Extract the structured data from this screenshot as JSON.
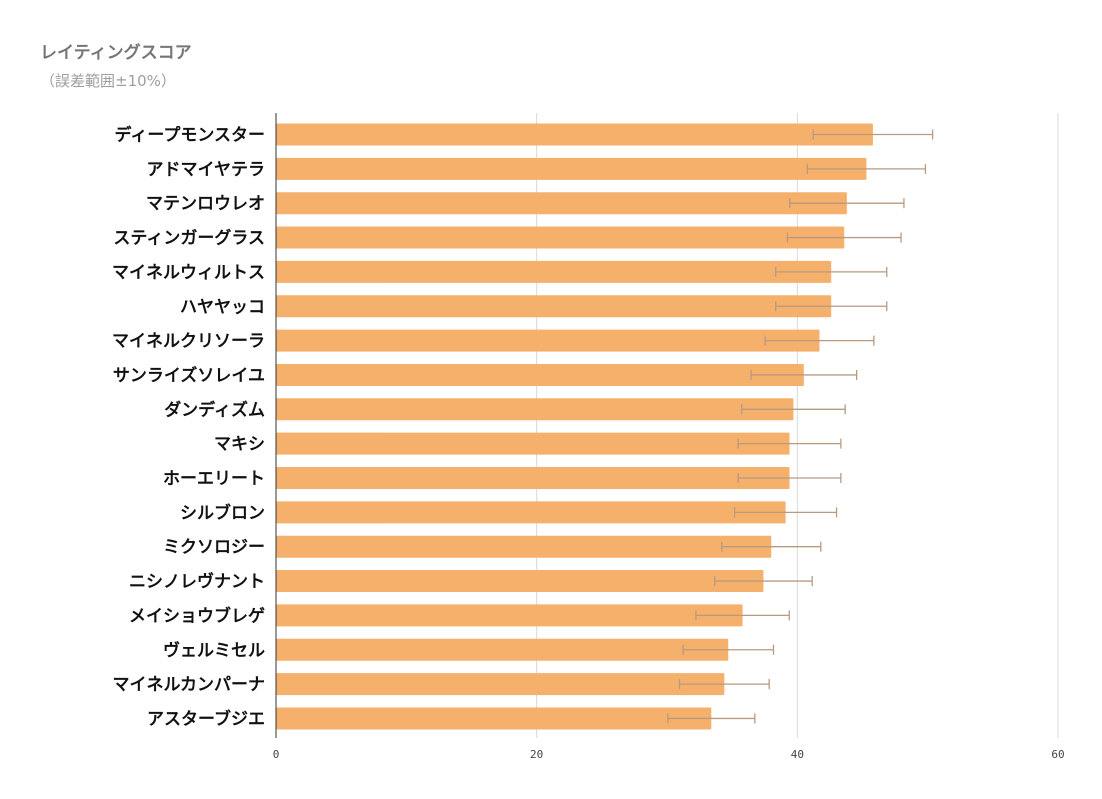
{
  "chart_data": {
    "type": "bar",
    "orientation": "horizontal",
    "title": "レイティングスコア",
    "subtitle": "（誤差範囲±10%）",
    "xlabel": "",
    "ylabel": "",
    "xlim": [
      0,
      60
    ],
    "x_ticks": [
      "0",
      "20",
      "40",
      "60"
    ],
    "grid": true,
    "error_bars": "±10%",
    "bar_color": "#f5b06b",
    "error_bar_color": "#b89a80",
    "categories": [
      "ディープモンスター",
      "アドマイヤテラ",
      "マテンロウレオ",
      "スティンガーグラス",
      "マイネルウィルトス",
      "ハヤヤッコ",
      "マイネルクリソーラ",
      "サンライズソレイユ",
      "ダンディズム",
      "マキシ",
      "ホーエリート",
      "シルブロン",
      "ミクソロジー",
      "ニシノレヴナント",
      "メイショウブレゲ",
      "ヴェルミセル",
      "マイネルカンパーナ",
      "アスターブジエ"
    ],
    "values": [
      45.8,
      45.3,
      43.8,
      43.6,
      42.6,
      42.6,
      41.7,
      40.5,
      39.7,
      39.4,
      39.4,
      39.1,
      38.0,
      37.4,
      35.8,
      34.7,
      34.4,
      33.4
    ]
  }
}
